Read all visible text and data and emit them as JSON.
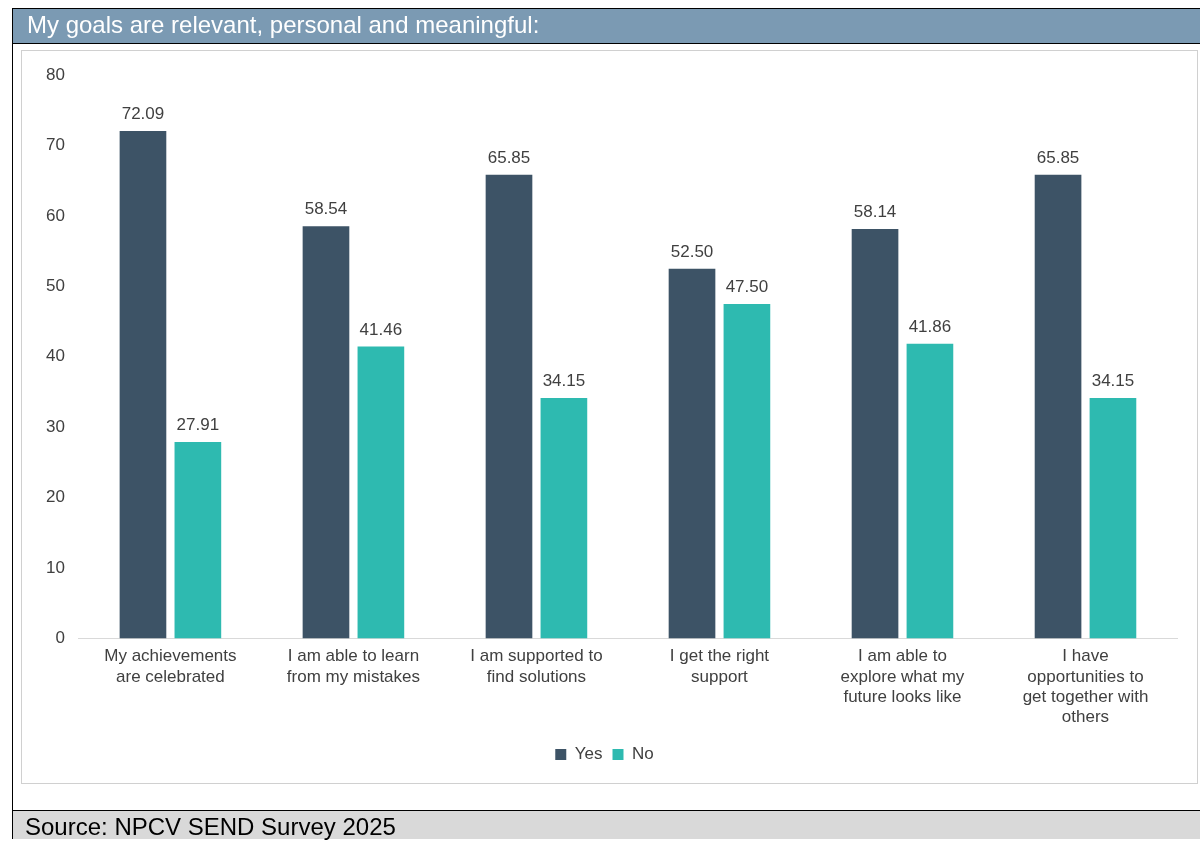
{
  "chart_data": {
    "type": "bar",
    "title": "My goals are relevant, personal and meaningful:",
    "categories": [
      "My achievements are celebrated",
      "I am able to learn from my mistakes",
      "I am supported to find solutions",
      "I get the right support",
      "I am able to explore what my future looks like",
      "I have opportunities to get together with others"
    ],
    "series": [
      {
        "name": "Yes",
        "color": "#3d5366",
        "values": [
          72.09,
          58.54,
          65.85,
          52.5,
          58.14,
          65.85
        ],
        "value_labels": [
          "72.09",
          "58.54",
          "65.85",
          "52.50",
          "58.14",
          "65.85"
        ]
      },
      {
        "name": "No",
        "color": "#2ebab0",
        "values": [
          27.91,
          41.46,
          34.15,
          47.5,
          41.86,
          34.15
        ],
        "value_labels": [
          "27.91",
          "41.46",
          "34.15",
          "47.50",
          "41.86",
          "34.15"
        ]
      }
    ],
    "ylim": [
      0,
      80
    ],
    "yticks": [
      0,
      10,
      20,
      30,
      40,
      50,
      60,
      70,
      80
    ],
    "grid": false,
    "legend": "bottom",
    "annotations": [
      "Source: NPCV SEND Survey 2025"
    ]
  }
}
